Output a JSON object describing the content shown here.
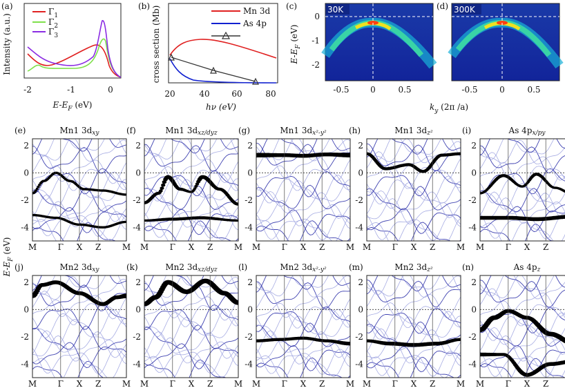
{
  "top": {
    "a": {
      "label": "(a)",
      "ylabel": "Intensity (a.u.)",
      "xlabel": "E-E",
      "xlabel_sub": "F",
      "xlabel_unit": " (eV)",
      "xticks": [
        "-2",
        "-1",
        "0"
      ],
      "legend": [
        {
          "name": "Γ",
          "sub": "1",
          "color": "#e02020"
        },
        {
          "name": "Γ",
          "sub": "2",
          "color": "#7ee04a"
        },
        {
          "name": "Γ",
          "sub": "3",
          "color": "#8a2be2"
        }
      ]
    },
    "b": {
      "label": "(b)",
      "ylabel": "cross section (Mb)",
      "xlabel": "hν (eV)",
      "xticks": [
        "20",
        "40",
        "60",
        "80"
      ],
      "legend": [
        {
          "name": "Mn 3d",
          "color": "#e02020"
        },
        {
          "name": "As 4p",
          "color": "#1020d0"
        },
        {
          "name": "",
          "color": "#333"
        }
      ]
    },
    "c": {
      "label": "(c)",
      "temp": "30K"
    },
    "d": {
      "label": "(d)",
      "temp": "300K"
    },
    "cd": {
      "ylabel": "E-E",
      "ylabel_sub": "F",
      "ylabel_unit": " (eV)",
      "yticks": [
        "0",
        "-1",
        "-2"
      ],
      "xticks": [
        "-0.5",
        "0",
        "0.5",
        "-0.5",
        "0",
        "0.5"
      ],
      "xlabel": "k",
      "xlabel_sub": "y",
      "xlabel_unit": " (2π /a)"
    }
  },
  "bands": {
    "ylabel": "E-E",
    "ylabel_sub": "F",
    "ylabel_unit": " (eV)",
    "yticks": [
      "2",
      "0",
      "-2",
      "-4"
    ],
    "kpoints": [
      "M",
      "Γ",
      "X",
      "Z",
      "M"
    ],
    "panels": [
      {
        "id": "e",
        "label": "(e)",
        "title": "Mn1 3d",
        "title_sub": "xy"
      },
      {
        "id": "f",
        "label": "(f)",
        "title": "Mn1 3d",
        "title_sub": "xz/dyz"
      },
      {
        "id": "g",
        "label": "(g)",
        "title": "Mn1 3d",
        "title_sub": "x²-y²"
      },
      {
        "id": "h",
        "label": "(h)",
        "title": "Mn1 3d",
        "title_sub": "z²"
      },
      {
        "id": "i",
        "label": "(i)",
        "title": "As 4p",
        "title_sub": "x/py"
      },
      {
        "id": "j",
        "label": "(j)",
        "title": "Mn2 3d",
        "title_sub": "xy"
      },
      {
        "id": "k",
        "label": "(k)",
        "title": "Mn2 3d",
        "title_sub": "xz/dyz"
      },
      {
        "id": "l",
        "label": "(l)",
        "title": "Mn2 3d",
        "title_sub": "x²-y²"
      },
      {
        "id": "m",
        "label": "(m)",
        "title": "Mn2 3d",
        "title_sub": "z²"
      },
      {
        "id": "n",
        "label": "(n)",
        "title": "As 4p",
        "title_sub": "z"
      }
    ]
  },
  "colors": {
    "band_light": "#9da3e0",
    "band_dark": "#2b2fa8",
    "weight": "#000000",
    "arpes_bg": "#1a2a8a"
  }
}
